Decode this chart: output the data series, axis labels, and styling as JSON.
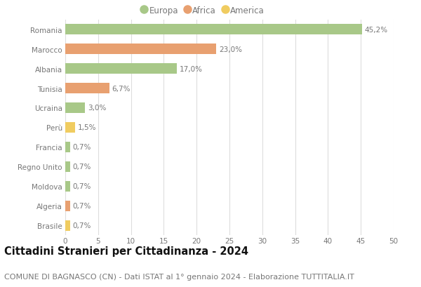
{
  "countries": [
    "Romania",
    "Marocco",
    "Albania",
    "Tunisia",
    "Ucraina",
    "Perù",
    "Francia",
    "Regno Unito",
    "Moldova",
    "Algeria",
    "Brasile"
  ],
  "values": [
    45.2,
    23.0,
    17.0,
    6.7,
    3.0,
    1.5,
    0.7,
    0.7,
    0.7,
    0.7,
    0.7
  ],
  "labels": [
    "45,2%",
    "23,0%",
    "17,0%",
    "6,7%",
    "3,0%",
    "1,5%",
    "0,7%",
    "0,7%",
    "0,7%",
    "0,7%",
    "0,7%"
  ],
  "continents": [
    "Europa",
    "Africa",
    "Europa",
    "Africa",
    "Europa",
    "America",
    "Europa",
    "Europa",
    "Europa",
    "Africa",
    "America"
  ],
  "colors": {
    "Europa": "#a8c888",
    "Africa": "#e8a070",
    "America": "#f0cc60"
  },
  "legend_order": [
    "Europa",
    "Africa",
    "America"
  ],
  "xlim": [
    0,
    50
  ],
  "xticks": [
    0,
    5,
    10,
    15,
    20,
    25,
    30,
    35,
    40,
    45,
    50
  ],
  "title": "Cittadini Stranieri per Cittadinanza - 2024",
  "subtitle": "COMUNE DI BAGNASCO (CN) - Dati ISTAT al 1° gennaio 2024 - Elaborazione TUTTITALIA.IT",
  "background_color": "#ffffff",
  "grid_color": "#dddddd",
  "bar_height": 0.55,
  "title_fontsize": 10.5,
  "subtitle_fontsize": 8,
  "label_fontsize": 7.5,
  "tick_fontsize": 7.5,
  "legend_fontsize": 8.5,
  "text_color": "#777777",
  "title_color": "#111111"
}
